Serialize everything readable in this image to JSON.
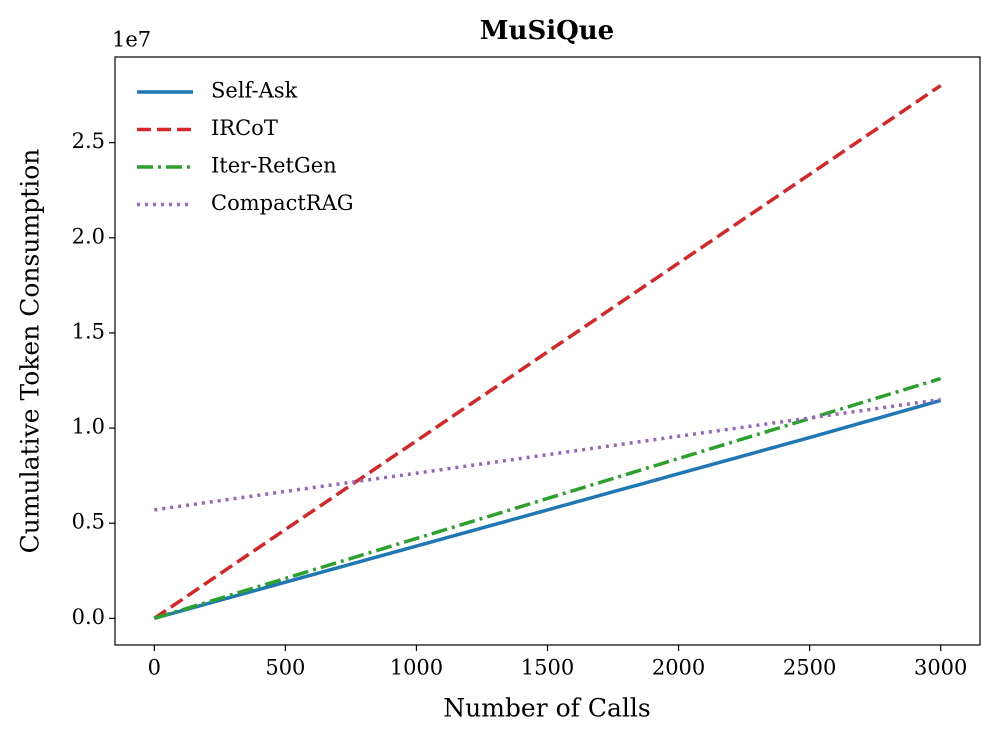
{
  "chart_data": {
    "type": "line",
    "title": "MuSiQue",
    "x_label": "Number of Calls",
    "y_label": "Cumulative Token Consumption",
    "y_offset_label": "1e7",
    "x": [
      0,
      500,
      1000,
      1500,
      2000,
      2500,
      3000
    ],
    "series": [
      {
        "name": "Self-Ask",
        "color": "#1f77b4",
        "style": "solid",
        "values": [
          0,
          0.19,
          0.38,
          0.57,
          0.76,
          0.95,
          1.145
        ]
      },
      {
        "name": "IRCoT",
        "color": "#d62728",
        "style": "dashed",
        "values": [
          0,
          0.467,
          0.933,
          1.4,
          1.867,
          2.333,
          2.8
        ]
      },
      {
        "name": "Iter-RetGen",
        "color": "#2ca02c",
        "style": "dashdot",
        "values": [
          0,
          0.21,
          0.42,
          0.63,
          0.84,
          1.05,
          1.26
        ]
      },
      {
        "name": "CompactRAG",
        "color": "#9467bd",
        "style": "dotted",
        "values": [
          0.57,
          0.667,
          0.763,
          0.86,
          0.957,
          1.053,
          1.15
        ]
      }
    ],
    "xlim": [
      -150,
      3150
    ],
    "xticks": [
      0,
      500,
      1000,
      1500,
      2000,
      2500,
      3000
    ],
    "ylim": [
      -0.14,
      2.95
    ],
    "yticks": [
      {
        "value": 0,
        "label": "0.0"
      },
      0.5,
      {
        "value": 1,
        "label": "1.0"
      },
      1.5,
      {
        "value": 2,
        "label": "2.0"
      },
      2.5
    ],
    "grid": false,
    "legend": "upper-left"
  }
}
